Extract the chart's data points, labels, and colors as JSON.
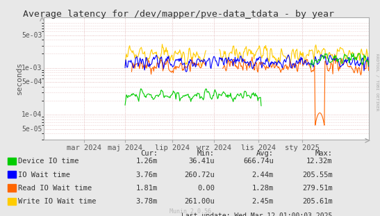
{
  "title": "Average latency for /dev/mapper/pve-data_tdata - by year",
  "ylabel": "seconds",
  "background_color": "#e8e8e8",
  "plot_bg_color": "#ffffff",
  "grid_color": "#ddaaaa",
  "ylim_log_min": 3e-05,
  "ylim_log_max": 0.012,
  "yticks": [
    5e-05,
    0.0001,
    0.0005,
    0.001,
    0.005
  ],
  "ytick_labels": [
    "5e-05",
    "1e-04",
    "5e-04",
    "1e-03",
    "5e-03"
  ],
  "x_ticks_labels": [
    "mar 2024",
    "maj 2024",
    "lip 2024",
    "wrz 2024",
    "lis 2024",
    "sty 2025"
  ],
  "x_ticks_positions": [
    0.125,
    0.25,
    0.395,
    0.525,
    0.66,
    0.795
  ],
  "series": {
    "device_io": {
      "color": "#00cc00",
      "label": "Device IO time"
    },
    "io_wait": {
      "color": "#0000ff",
      "label": "IO Wait time"
    },
    "read_wait": {
      "color": "#ff6600",
      "label": "Read IO Wait time"
    },
    "write_wait": {
      "color": "#ffcc00",
      "label": "Write IO Wait time"
    }
  },
  "legend_rows": [
    {
      "label": "Device IO time",
      "color": "#00cc00",
      "cur": "1.26m",
      "min": "36.41u",
      "avg": "666.74u",
      "max": "12.32m"
    },
    {
      "label": "IO Wait time",
      "color": "#0000ff",
      "cur": "3.76m",
      "min": "260.72u",
      "avg": "2.44m",
      "max": "205.55m"
    },
    {
      "label": "Read IO Wait time",
      "color": "#ff6600",
      "cur": "1.81m",
      "min": "0.00",
      "avg": "1.28m",
      "max": "279.51m"
    },
    {
      "label": "Write IO Wait time",
      "color": "#ffcc00",
      "cur": "3.78m",
      "min": "261.00u",
      "avg": "2.45m",
      "max": "205.61m"
    }
  ],
  "last_update": "Last update: Wed Mar 12 01:00:03 2025",
  "watermark": "Munin 2.0.56",
  "rrdtool_label": "RRDTOOL / TOBI OETIKER",
  "title_color": "#333333",
  "axis_color": "#555555",
  "legend_color": "#333333"
}
